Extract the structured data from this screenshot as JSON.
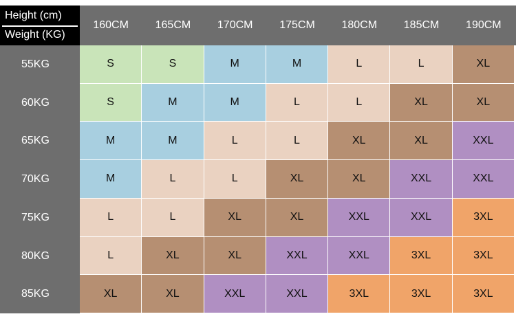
{
  "header": {
    "height_label": "Height (cm)",
    "weight_label": "Weight (KG)"
  },
  "columns": [
    "160CM",
    "165CM",
    "170CM",
    "175CM",
    "180CM",
    "185CM",
    "190CM"
  ],
  "rows": [
    {
      "weight": "55KG",
      "sizes": [
        "S",
        "S",
        "M",
        "M",
        "L",
        "L",
        "XL"
      ]
    },
    {
      "weight": "60KG",
      "sizes": [
        "S",
        "M",
        "M",
        "L",
        "L",
        "XL",
        "XL"
      ]
    },
    {
      "weight": "65KG",
      "sizes": [
        "M",
        "M",
        "L",
        "L",
        "XL",
        "XL",
        "XXL"
      ]
    },
    {
      "weight": "70KG",
      "sizes": [
        "M",
        "L",
        "L",
        "XL",
        "XL",
        "XXL",
        "XXL"
      ]
    },
    {
      "weight": "75KG",
      "sizes": [
        "L",
        "L",
        "XL",
        "XL",
        "XXL",
        "XXL",
        "3XL"
      ]
    },
    {
      "weight": "80KG",
      "sizes": [
        "L",
        "XL",
        "XL",
        "XXL",
        "XXL",
        "3XL",
        "3XL"
      ]
    },
    {
      "weight": "85KG",
      "sizes": [
        "XL",
        "XL",
        "XXL",
        "XXL",
        "3XL",
        "3XL",
        "3XL"
      ]
    }
  ],
  "colors": {
    "header_band": "#6e6e6e",
    "corner": "#000000",
    "S": "#c9e4b9",
    "M": "#a8cfe0",
    "L": "#ead2c1",
    "XL": "#b68f72",
    "XXL": "#b08fc2",
    "3XL": "#f0a469"
  }
}
